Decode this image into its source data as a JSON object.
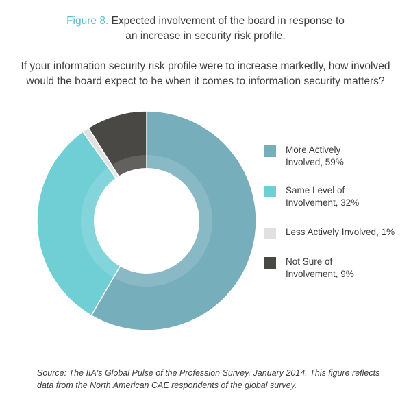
{
  "header": {
    "figure_label": "Figure 8.",
    "title_line1": "Expected involvement of the board in response to",
    "title_line2": "an increase in security risk profile."
  },
  "question": {
    "line1": "If your information security risk profile were to increase markedly, how involved",
    "line2": "would the board expect to be when it comes to information security matters?"
  },
  "chart_data": {
    "type": "pie",
    "variant": "donut",
    "title": "Expected involvement of the board in response to an increase in security risk profile.",
    "unit": "%",
    "legend_position": "right",
    "slices": [
      {
        "label": "More Actively Involved, 59%",
        "value": 59,
        "color": "#76aebb"
      },
      {
        "label": "Same Level of Involvement, 32%",
        "value": 32,
        "color": "#6fcfd5"
      },
      {
        "label": "Less Actively Involved, 1%",
        "value": 1,
        "color": "#dfe1e2"
      },
      {
        "label": "Not Sure of Involvement, 9%",
        "value": 9,
        "color": "#4a4844"
      }
    ]
  },
  "legend": {
    "items": [
      {
        "text": "More Actively\nInvolved, 59%"
      },
      {
        "text": "Same Level of\nInvolvement, 32%"
      },
      {
        "text": "Less Actively Involved, 1%"
      },
      {
        "text": "Not Sure of\nInvolvement, 9%"
      }
    ]
  },
  "source": {
    "text": "Source: The IIA's Global Pulse of the Profession Survey, January 2014. This figure reflects data from the North American CAE respondents of the global survey."
  }
}
